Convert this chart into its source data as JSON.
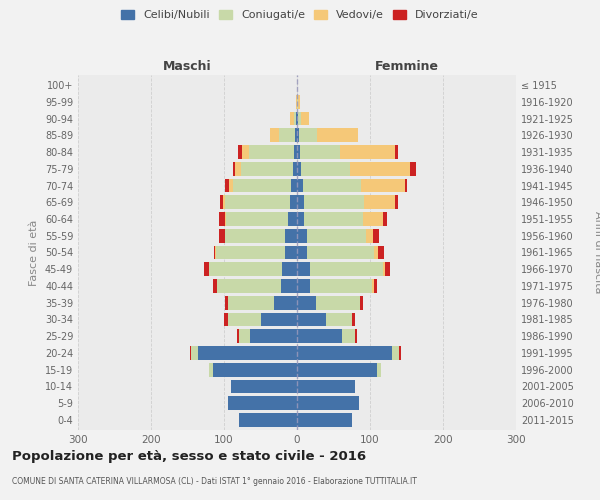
{
  "age_groups": [
    "0-4",
    "5-9",
    "10-14",
    "15-19",
    "20-24",
    "25-29",
    "30-34",
    "35-39",
    "40-44",
    "45-49",
    "50-54",
    "55-59",
    "60-64",
    "65-69",
    "70-74",
    "75-79",
    "80-84",
    "85-89",
    "90-94",
    "95-99",
    "100+"
  ],
  "birth_years": [
    "2011-2015",
    "2006-2010",
    "2001-2005",
    "1996-2000",
    "1991-1995",
    "1986-1990",
    "1981-1985",
    "1976-1980",
    "1971-1975",
    "1966-1970",
    "1961-1965",
    "1956-1960",
    "1951-1955",
    "1946-1950",
    "1941-1945",
    "1936-1940",
    "1931-1935",
    "1926-1930",
    "1921-1925",
    "1916-1920",
    "≤ 1915"
  ],
  "maschi": {
    "celibi": [
      80,
      95,
      90,
      115,
      135,
      65,
      50,
      32,
      22,
      20,
      16,
      16,
      12,
      10,
      8,
      5,
      4,
      3,
      1,
      0,
      0
    ],
    "coniugati": [
      0,
      0,
      0,
      5,
      10,
      15,
      45,
      62,
      88,
      100,
      95,
      82,
      85,
      88,
      80,
      72,
      62,
      22,
      3,
      0,
      0
    ],
    "vedovi": [
      0,
      0,
      0,
      0,
      0,
      0,
      0,
      0,
      0,
      0,
      1,
      1,
      2,
      3,
      5,
      8,
      10,
      12,
      5,
      1,
      0
    ],
    "divorziati": [
      0,
      0,
      0,
      0,
      2,
      2,
      5,
      5,
      5,
      8,
      2,
      8,
      8,
      5,
      5,
      2,
      5,
      0,
      0,
      0,
      0
    ]
  },
  "femmine": {
    "nubili": [
      75,
      85,
      80,
      110,
      130,
      62,
      40,
      26,
      18,
      18,
      14,
      14,
      10,
      10,
      8,
      5,
      4,
      3,
      1,
      0,
      0
    ],
    "coniugate": [
      0,
      0,
      0,
      5,
      10,
      18,
      35,
      60,
      85,
      100,
      92,
      80,
      80,
      82,
      80,
      68,
      55,
      25,
      5,
      2,
      0
    ],
    "vedove": [
      0,
      0,
      0,
      0,
      0,
      0,
      0,
      0,
      2,
      2,
      5,
      10,
      28,
      42,
      60,
      82,
      75,
      55,
      10,
      2,
      0
    ],
    "divorziate": [
      0,
      0,
      0,
      0,
      2,
      2,
      5,
      5,
      5,
      8,
      8,
      8,
      5,
      5,
      3,
      8,
      5,
      0,
      0,
      0,
      0
    ]
  },
  "colors": {
    "celibi": "#4472a8",
    "coniugati": "#c8d9a8",
    "vedovi": "#f5c878",
    "divorziati": "#cc2222"
  },
  "xlim": 300,
  "title": "Popolazione per età, sesso e stato civile - 2016",
  "subtitle": "COMUNE DI SANTA CATERINA VILLARMOSA (CL) - Dati ISTAT 1° gennaio 2016 - Elaborazione TUTTITALIA.IT",
  "ylabel_left": "Fasce di età",
  "ylabel_right": "Anni di nascita",
  "label_maschi": "Maschi",
  "label_femmine": "Femmine",
  "bg_color": "#f2f2f2",
  "plot_bg": "#ebebeb"
}
